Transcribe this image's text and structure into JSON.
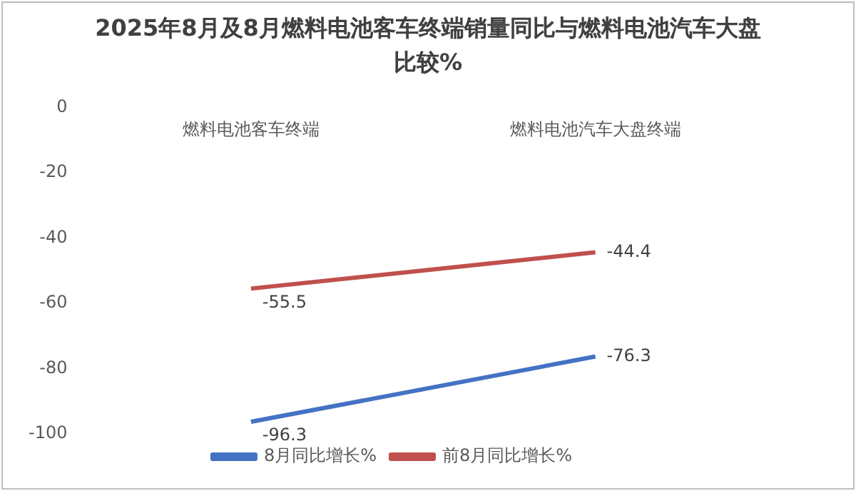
{
  "chart_data": {
    "type": "line",
    "title": "2025年8月及8月燃料电池客车终端销量同比与燃料电池汽车大盘比较%",
    "categories": [
      "燃料电池客车终端",
      "燃料电池汽车大盘终端"
    ],
    "series": [
      {
        "name": "8月同比增长%",
        "color": "#4472c4",
        "values": [
          -96.3,
          -76.3
        ]
      },
      {
        "name": "前8月同比增长%",
        "color": "#c0504d",
        "values": [
          -55.5,
          -44.4
        ]
      }
    ],
    "ylim": [
      -100,
      0
    ],
    "yticks": [
      0,
      -20,
      -40,
      -60,
      -80,
      -100
    ],
    "grid": false,
    "legend": "bottom",
    "marker": "none",
    "data_labels": true
  }
}
